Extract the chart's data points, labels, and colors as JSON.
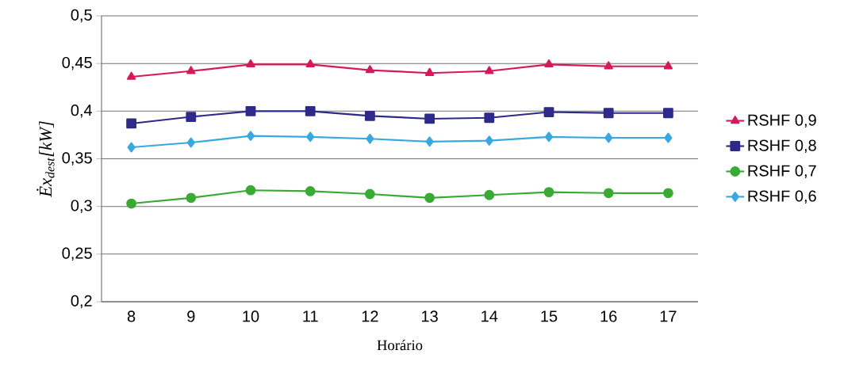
{
  "chart_data": {
    "type": "line",
    "xlabel": "Horário",
    "ylabel": "Ėx$_{dest}$[kW]",
    "categories": [
      "8",
      "9",
      "10",
      "11",
      "12",
      "13",
      "14",
      "15",
      "16",
      "17"
    ],
    "series": [
      {
        "name": "RSHF 0,9",
        "color": "#d6195b",
        "marker": "triangle",
        "values": [
          0.436,
          0.442,
          0.449,
          0.449,
          0.443,
          0.44,
          0.442,
          0.449,
          0.447,
          0.447
        ]
      },
      {
        "name": "RSHF 0,8",
        "color": "#2e2a8a",
        "marker": "square",
        "values": [
          0.387,
          0.394,
          0.4,
          0.4,
          0.395,
          0.392,
          0.393,
          0.399,
          0.398,
          0.398
        ]
      },
      {
        "name": "RSHF 0,7",
        "color": "#3aaa35",
        "marker": "circle",
        "values": [
          0.303,
          0.309,
          0.317,
          0.316,
          0.313,
          0.309,
          0.312,
          0.315,
          0.314,
          0.314
        ]
      },
      {
        "name": "RSHF 0,6",
        "color": "#3aa8e0",
        "marker": "diamond",
        "values": [
          0.362,
          0.367,
          0.374,
          0.373,
          0.371,
          0.368,
          0.369,
          0.373,
          0.372,
          0.372
        ]
      }
    ],
    "ylim": [
      0.2,
      0.5
    ],
    "yticks": [
      {
        "value": 0.2,
        "label": "0,2"
      },
      {
        "value": 0.25,
        "label": "0,25"
      },
      {
        "value": 0.3,
        "label": "0,3"
      },
      {
        "value": 0.35,
        "label": "0,35"
      },
      {
        "value": 0.4,
        "label": "0,4"
      },
      {
        "value": 0.45,
        "label": "0,45"
      },
      {
        "value": 0.5,
        "label": "0,5"
      }
    ],
    "grid": "y",
    "legend": "right",
    "line_style": "solid"
  }
}
